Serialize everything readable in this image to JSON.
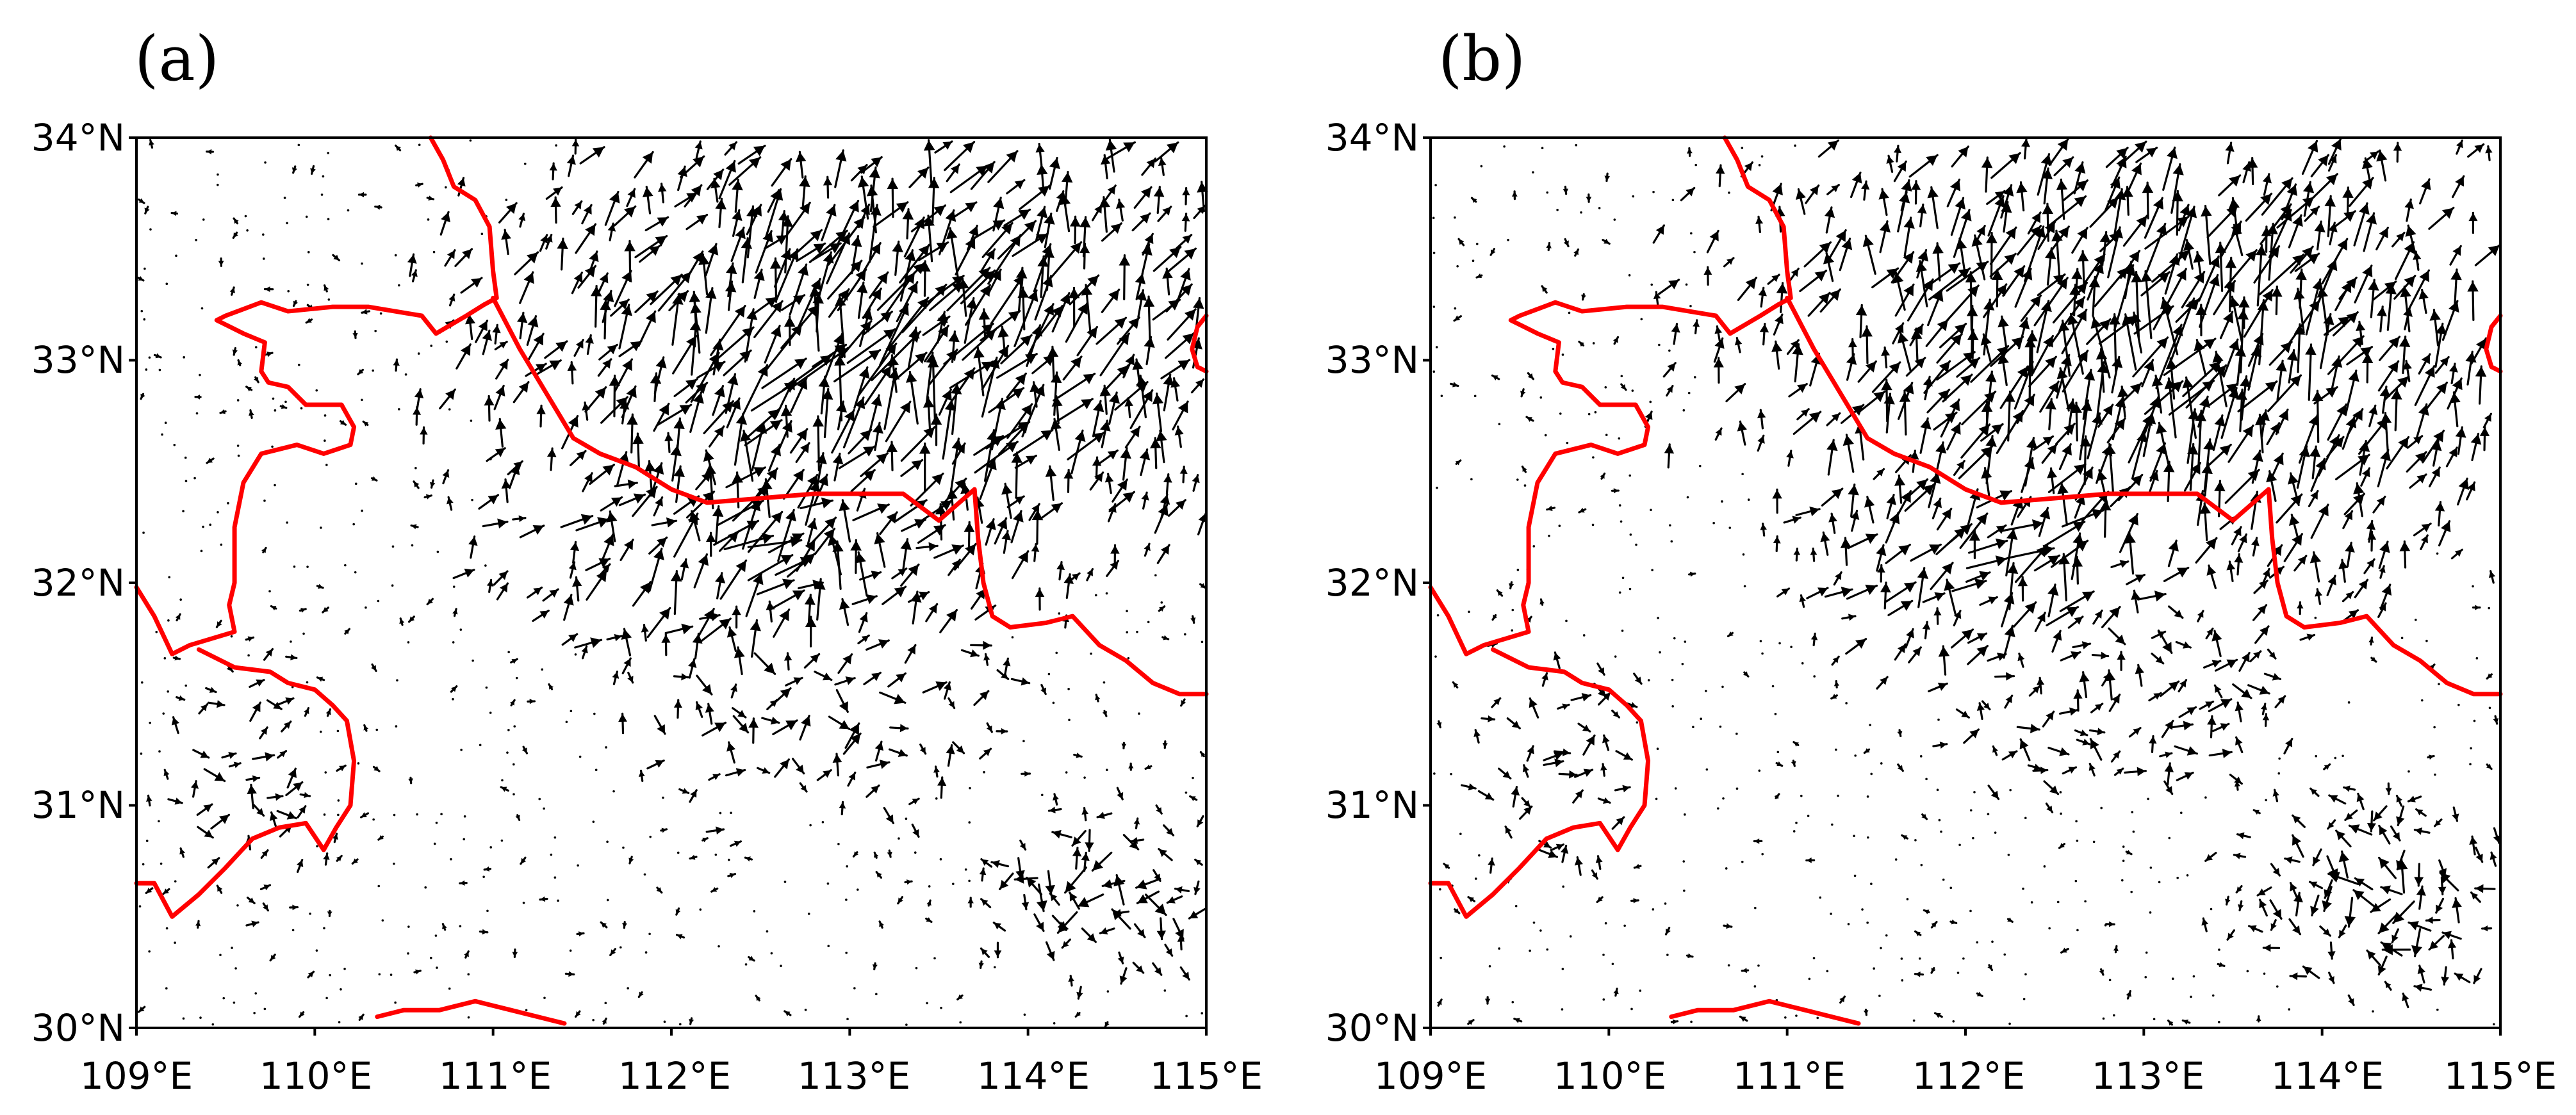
{
  "chart_data": [
    {
      "type": "vector-field",
      "panel_label": "(a)",
      "xlim": [
        109,
        115
      ],
      "ylim": [
        30,
        34
      ],
      "xticks": [
        109,
        110,
        111,
        112,
        113,
        114,
        115
      ],
      "yticks": [
        30,
        31,
        32,
        33,
        34
      ],
      "xtick_labels": [
        "109°E",
        "110°E",
        "111°E",
        "112°E",
        "113°E",
        "114°E",
        "115°E"
      ],
      "ytick_labels": [
        "30°N",
        "31°N",
        "32°N",
        "33°N",
        "34°N"
      ],
      "boundary_color": "#ff0000",
      "vector_color": "#000000",
      "seed": 7,
      "dense_regions": [
        {
          "lon": 113.2,
          "lat": 33.1,
          "rx": 1.9,
          "ry": 1.0,
          "weight": 1.0,
          "dir_deg": 65,
          "spread": 35,
          "mag": 1.0
        },
        {
          "lon": 112.5,
          "lat": 32.2,
          "rx": 1.3,
          "ry": 0.6,
          "weight": 0.8,
          "dir_deg": 55,
          "spread": 50,
          "mag": 0.9
        },
        {
          "lon": 114.4,
          "lat": 30.6,
          "rx": 0.6,
          "ry": 0.35,
          "weight": 0.9,
          "dir_deg": 200,
          "spread": 120,
          "mag": 0.55
        },
        {
          "lon": 112.8,
          "lat": 31.5,
          "rx": 1.2,
          "ry": 0.6,
          "weight": 0.5,
          "dir_deg": 20,
          "spread": 90,
          "mag": 0.7
        },
        {
          "lon": 109.6,
          "lat": 31.1,
          "rx": 0.5,
          "ry": 0.6,
          "weight": 0.45,
          "dir_deg": 30,
          "spread": 90,
          "mag": 0.6
        }
      ]
    },
    {
      "type": "vector-field",
      "panel_label": "(b)",
      "xlim": [
        109,
        115
      ],
      "ylim": [
        30,
        34
      ],
      "xticks": [
        109,
        110,
        111,
        112,
        113,
        114,
        115
      ],
      "yticks": [
        30,
        31,
        32,
        33,
        34
      ],
      "xtick_labels": [
        "109°E",
        "110°E",
        "111°E",
        "112°E",
        "113°E",
        "114°E",
        "115°E"
      ],
      "ytick_labels": [
        "30°N",
        "31°N",
        "32°N",
        "33°N",
        "34°N"
      ],
      "boundary_color": "#ff0000",
      "vector_color": "#000000",
      "seed": 19,
      "dense_regions": [
        {
          "lon": 113.0,
          "lat": 33.1,
          "rx": 2.0,
          "ry": 1.0,
          "weight": 1.0,
          "dir_deg": 70,
          "spread": 35,
          "mag": 1.0
        },
        {
          "lon": 112.3,
          "lat": 32.2,
          "rx": 1.2,
          "ry": 0.6,
          "weight": 0.8,
          "dir_deg": 60,
          "spread": 50,
          "mag": 0.85
        },
        {
          "lon": 114.3,
          "lat": 30.6,
          "rx": 0.7,
          "ry": 0.4,
          "weight": 0.95,
          "dir_deg": 200,
          "spread": 120,
          "mag": 0.55
        },
        {
          "lon": 112.9,
          "lat": 31.6,
          "rx": 1.1,
          "ry": 0.6,
          "weight": 0.5,
          "dir_deg": 30,
          "spread": 90,
          "mag": 0.7
        },
        {
          "lon": 109.7,
          "lat": 31.2,
          "rx": 0.5,
          "ry": 0.6,
          "weight": 0.45,
          "dir_deg": 30,
          "spread": 90,
          "mag": 0.6
        }
      ]
    }
  ],
  "boundaries": [
    [
      [
        110.65,
        34.0
      ],
      [
        110.72,
        33.9
      ],
      [
        110.78,
        33.78
      ],
      [
        110.9,
        33.72
      ],
      [
        110.98,
        33.6
      ],
      [
        111.0,
        33.4
      ],
      [
        111.02,
        33.28
      ],
      [
        110.95,
        33.25
      ],
      [
        110.85,
        33.2
      ],
      [
        110.68,
        33.12
      ],
      [
        110.6,
        33.2
      ],
      [
        110.3,
        33.24
      ],
      [
        110.1,
        33.24
      ],
      [
        109.85,
        33.22
      ],
      [
        109.7,
        33.26
      ],
      [
        109.5,
        33.2
      ],
      [
        109.45,
        33.18
      ],
      [
        109.6,
        33.12
      ],
      [
        109.72,
        33.08
      ],
      [
        109.7,
        32.95
      ],
      [
        109.74,
        32.9
      ],
      [
        109.85,
        32.88
      ],
      [
        109.95,
        32.8
      ],
      [
        110.15,
        32.8
      ],
      [
        110.22,
        32.7
      ],
      [
        110.2,
        32.62
      ],
      [
        110.05,
        32.58
      ],
      [
        109.9,
        32.62
      ],
      [
        109.7,
        32.58
      ],
      [
        109.6,
        32.45
      ],
      [
        109.55,
        32.25
      ],
      [
        109.55,
        32.0
      ],
      [
        109.52,
        31.9
      ],
      [
        109.55,
        31.78
      ],
      [
        109.3,
        31.72
      ],
      [
        109.2,
        31.68
      ],
      [
        109.1,
        31.85
      ],
      [
        109.0,
        31.98
      ]
    ],
    [
      [
        111.0,
        33.28
      ],
      [
        111.15,
        33.05
      ],
      [
        111.3,
        32.85
      ],
      [
        111.45,
        32.65
      ],
      [
        111.6,
        32.58
      ],
      [
        111.8,
        32.52
      ],
      [
        112.0,
        32.42
      ],
      [
        112.2,
        32.36
      ],
      [
        112.5,
        32.38
      ],
      [
        112.8,
        32.4
      ],
      [
        113.1,
        32.4
      ],
      [
        113.3,
        32.4
      ],
      [
        113.5,
        32.28
      ],
      [
        113.7,
        32.42
      ],
      [
        113.72,
        32.2
      ],
      [
        113.75,
        32.0
      ],
      [
        113.8,
        31.85
      ],
      [
        113.9,
        31.8
      ],
      [
        114.1,
        31.82
      ],
      [
        114.25,
        31.85
      ],
      [
        114.4,
        31.72
      ],
      [
        114.55,
        31.65
      ],
      [
        114.7,
        31.55
      ],
      [
        114.85,
        31.5
      ],
      [
        115.0,
        31.5
      ]
    ],
    [
      [
        109.0,
        30.65
      ],
      [
        109.1,
        30.65
      ],
      [
        109.2,
        30.5
      ],
      [
        109.35,
        30.6
      ],
      [
        109.5,
        30.72
      ],
      [
        109.65,
        30.85
      ],
      [
        109.8,
        30.9
      ],
      [
        109.95,
        30.92
      ],
      [
        110.05,
        30.8
      ],
      [
        110.12,
        30.9
      ],
      [
        110.2,
        31.0
      ],
      [
        110.22,
        31.2
      ],
      [
        110.18,
        31.38
      ],
      [
        110.1,
        31.45
      ],
      [
        110.0,
        31.52
      ],
      [
        109.85,
        31.55
      ],
      [
        109.75,
        31.6
      ],
      [
        109.55,
        31.62
      ],
      [
        109.35,
        31.7
      ]
    ],
    [
      [
        110.35,
        30.05
      ],
      [
        110.5,
        30.08
      ],
      [
        110.7,
        30.08
      ],
      [
        110.9,
        30.12
      ],
      [
        111.1,
        30.08
      ],
      [
        111.3,
        30.04
      ],
      [
        111.4,
        30.02
      ]
    ],
    [
      [
        115.0,
        33.2
      ],
      [
        114.95,
        33.15
      ],
      [
        114.92,
        33.05
      ],
      [
        114.95,
        32.97
      ],
      [
        115.0,
        32.95
      ]
    ]
  ]
}
